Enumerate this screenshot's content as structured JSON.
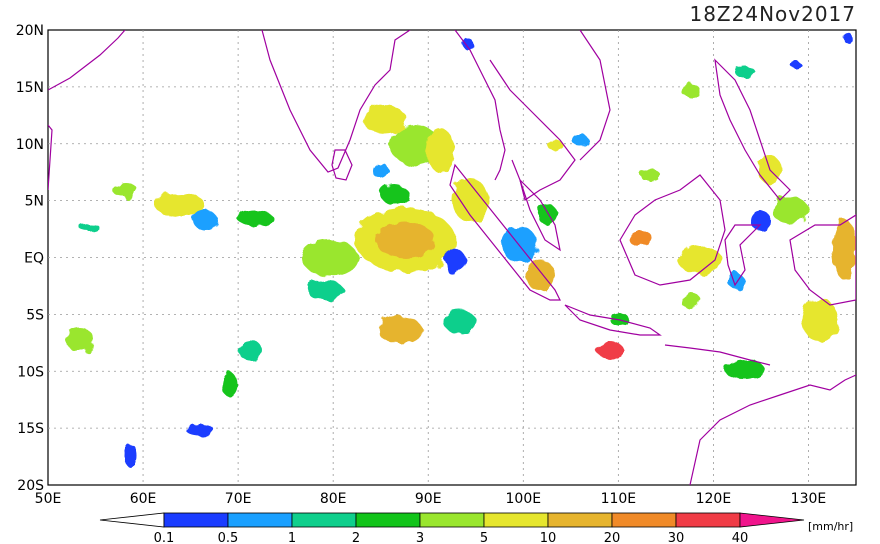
{
  "title": "18Z24Nov2017",
  "lat_labels": [
    "20N",
    "15N",
    "10N",
    "5N",
    "EQ",
    "5S",
    "10S",
    "15S",
    "20S"
  ],
  "lon_labels": [
    "50E",
    "60E",
    "70E",
    "80E",
    "90E",
    "100E",
    "110E",
    "120E",
    "130E"
  ],
  "colorbar": {
    "tick_labels": [
      "0.1",
      "0.5",
      "1",
      "2",
      "3",
      "5",
      "10",
      "20",
      "30",
      "40"
    ],
    "unit": "[mm/hr]",
    "colors": [
      "#ffffff",
      "#1a3cff",
      "#1aa0ff",
      "#0fcf8c",
      "#12c41a",
      "#9ae62e",
      "#e6e62e",
      "#e6b42e",
      "#f08a28",
      "#f03c46",
      "#f0148c"
    ]
  },
  "map": {
    "lon_range": [
      50,
      135
    ],
    "lat_range": [
      -20,
      20
    ],
    "grid_lines": "dotted"
  }
}
